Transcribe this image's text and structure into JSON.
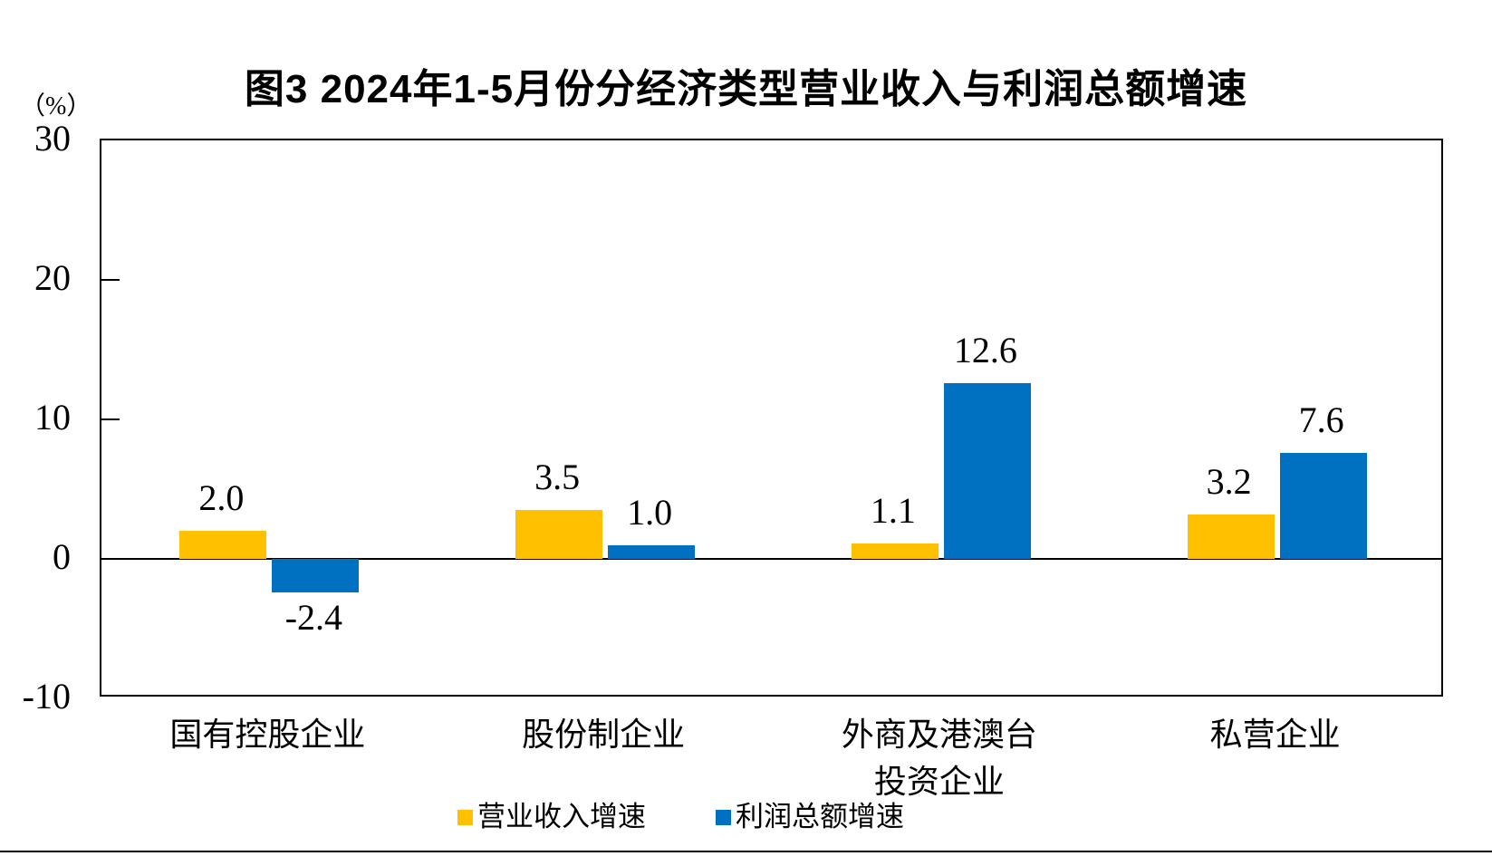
{
  "chart_data": {
    "type": "bar",
    "title": "图3 2024年1-5月份分经济类型营业收入与利润总额增速",
    "unit_label": "（%）",
    "categories": [
      "国有控股企业",
      "股份制企业",
      "外商及港澳台\n投资企业",
      "私营企业"
    ],
    "series": [
      {
        "name": "营业收入增速",
        "color": "#FFC000",
        "values": [
          2.0,
          3.5,
          1.1,
          3.2
        ],
        "labels": [
          "2.0",
          "3.5",
          "1.1",
          "3.2"
        ]
      },
      {
        "name": "利润总额增速",
        "color": "#0070C0",
        "values": [
          -2.4,
          1.0,
          12.6,
          7.6
        ],
        "labels": [
          "-2.4",
          "1.0",
          "12.6",
          "7.6"
        ]
      }
    ],
    "ylim": [
      -10,
      30
    ],
    "yticks": [
      30,
      20,
      10,
      0,
      -10
    ],
    "inner_ticks": [
      20,
      10
    ],
    "grid": false,
    "legend_position": "bottom",
    "axis_color": "#000000",
    "background_color": "#ffffff"
  }
}
